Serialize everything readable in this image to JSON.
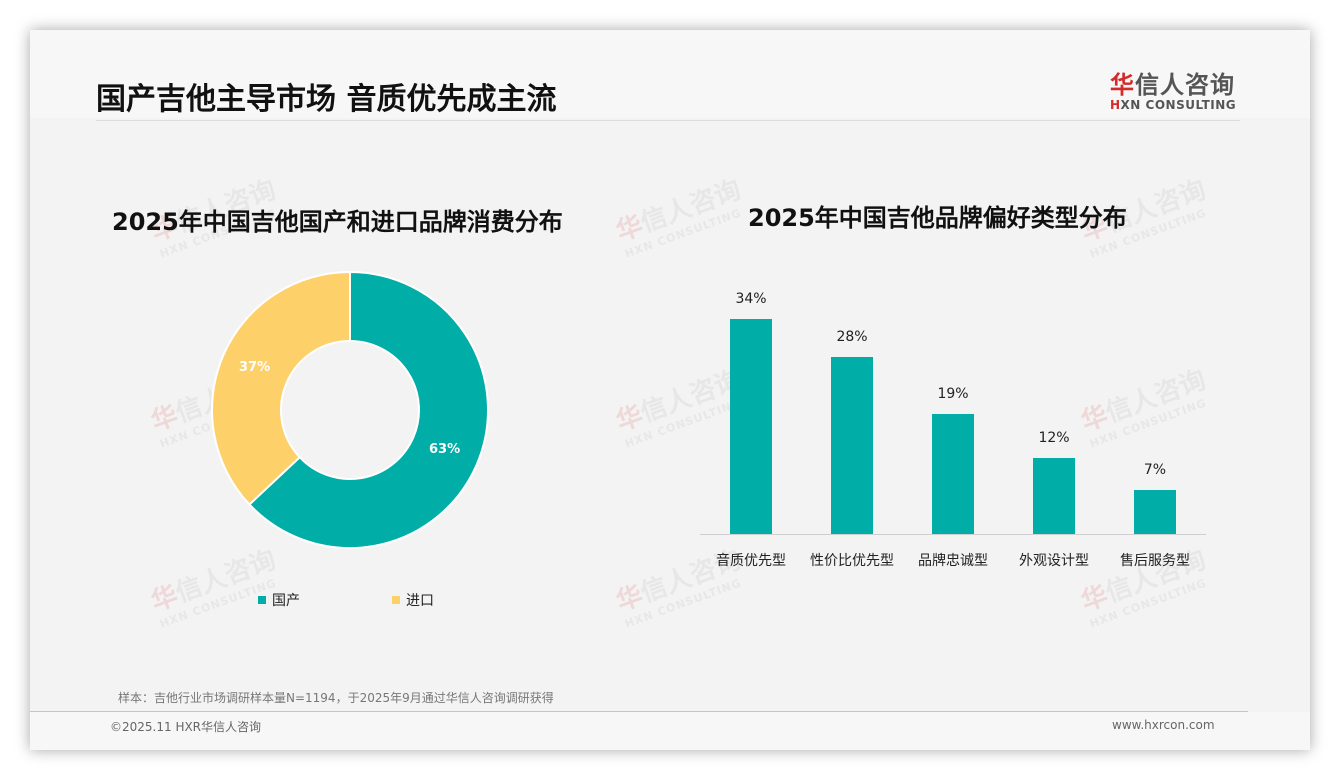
{
  "header": {
    "title": "国产吉他主导市场 音质优先成主流",
    "logo_cn_red": "华",
    "logo_cn_rest": "信人咨询",
    "logo_en_mark": "H",
    "logo_en_rest": "XN CONSULTING"
  },
  "watermark": {
    "cn_red": "华",
    "cn_rest": "信人咨询",
    "en": "HXN CONSULTING"
  },
  "colors": {
    "domestic": "#00aea7",
    "import": "#fdd06a",
    "bar": "#00aea7"
  },
  "chart_data": [
    {
      "type": "pie",
      "title": "2025年中国吉他国产和进口品牌消费分布",
      "categories": [
        "国产",
        "进口"
      ],
      "values": [
        63,
        37
      ],
      "labels": [
        "63%",
        "37%"
      ],
      "donut": true,
      "legend_position": "bottom"
    },
    {
      "type": "bar",
      "title": "2025年中国吉他品牌偏好类型分布",
      "categories": [
        "音质优先型",
        "性价比优先型",
        "品牌忠诚型",
        "外观设计型",
        "售后服务型"
      ],
      "values": [
        34,
        28,
        19,
        12,
        7
      ],
      "labels": [
        "34%",
        "28%",
        "19%",
        "12%",
        "7%"
      ],
      "xlabel": "",
      "ylabel": "",
      "grid": false,
      "ylim": [
        0,
        34
      ]
    }
  ],
  "legend": {
    "items": [
      {
        "label": "国产"
      },
      {
        "label": "进口"
      }
    ]
  },
  "footer": {
    "note": "样本：吉他行业市场调研样本量N=1194，于2025年9月通过华信人咨询调研获得",
    "copyright": "©2025.11 HXR华信人咨询",
    "site": "www.hxrcon.com"
  }
}
